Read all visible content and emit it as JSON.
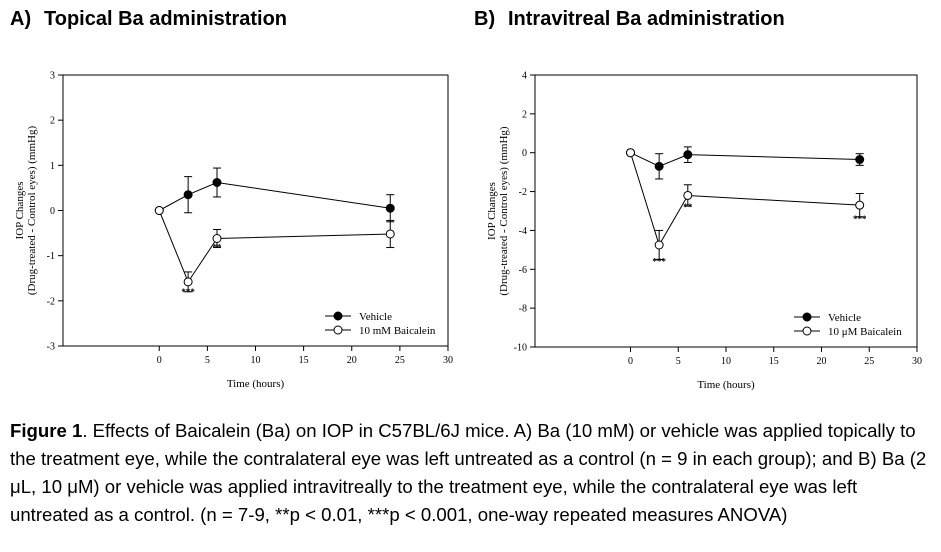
{
  "panels": [
    {
      "letter": "A)",
      "title": "Topical Ba administration"
    },
    {
      "letter": "B)",
      "title": "Intravitreal Ba administration"
    }
  ],
  "chart_data": [
    {
      "type": "line",
      "title": "Topical Ba administration",
      "xlabel": "Time (hours)",
      "ylabel": [
        "IOP Changes",
        "(Drug-treated - Control eyes) (mmHg)"
      ],
      "xlim": [
        -10,
        30
      ],
      "ylim": [
        -3,
        3
      ],
      "xticks": [
        0,
        5,
        10,
        15,
        20,
        25,
        30
      ],
      "yticks": [
        -3,
        -2,
        -1,
        0,
        1,
        2,
        3
      ],
      "legend_position": "bottom-right",
      "series": [
        {
          "name": "Vehicle",
          "marker": "filled-circle",
          "x": [
            0,
            3,
            6,
            24
          ],
          "y": [
            0,
            0.35,
            0.62,
            0.05
          ],
          "err": [
            0,
            0.4,
            0.32,
            0.3
          ]
        },
        {
          "name": "10 mM Baicalein",
          "marker": "open-circle",
          "x": [
            0,
            3,
            6,
            24
          ],
          "y": [
            0,
            -1.58,
            -0.62,
            -0.52
          ],
          "err": [
            0,
            0.22,
            0.2,
            0.3
          ]
        }
      ],
      "annotations": [
        {
          "x": 3,
          "y": -1.8,
          "text": "***"
        },
        {
          "x": 6,
          "y": -0.82,
          "text": "**"
        }
      ]
    },
    {
      "type": "line",
      "title": "Intravitreal Ba administration",
      "xlabel": "Time (hours)",
      "ylabel": [
        "IOP Changes",
        "(Drug-treated - Control eyes) (mmHg)"
      ],
      "xlim": [
        -10,
        30
      ],
      "ylim": [
        -10,
        4
      ],
      "xticks": [
        0,
        5,
        10,
        15,
        20,
        25,
        30
      ],
      "yticks": [
        -10,
        -8,
        -6,
        -4,
        -2,
        0,
        2,
        4
      ],
      "legend_position": "bottom-right",
      "series": [
        {
          "name": "Vehicle",
          "marker": "filled-circle",
          "x": [
            0,
            3,
            6,
            24
          ],
          "y": [
            0,
            -0.7,
            -0.1,
            -0.35
          ],
          "err": [
            0,
            0.65,
            0.4,
            0.3
          ]
        },
        {
          "name": "10 μM Baicalein",
          "marker": "open-circle",
          "x": [
            0,
            3,
            6,
            24
          ],
          "y": [
            0,
            -4.75,
            -2.2,
            -2.7
          ],
          "err": [
            0,
            0.75,
            0.55,
            0.6
          ]
        }
      ],
      "annotations": [
        {
          "x": 3,
          "y": -5.6,
          "text": "***"
        },
        {
          "x": 6,
          "y": -2.8,
          "text": "**"
        },
        {
          "x": 24,
          "y": -3.4,
          "text": "***"
        }
      ]
    }
  ],
  "caption": {
    "label": "Figure 1",
    "text": ". Effects of Baicalein (Ba) on IOP in C57BL/6J mice. A) Ba (10 mM) or vehicle was applied topically to the treatment eye, while the contralateral eye was left untreated as a control (n = 9 in each group); and B) Ba (2 μL, 10 μM) or vehicle was applied intravitreally to the treatment eye, while the contralateral eye was left untreated as a control. (n = 7-9, **p < 0.01, ***p < 0.001, one-way repeated measures ANOVA)"
  }
}
